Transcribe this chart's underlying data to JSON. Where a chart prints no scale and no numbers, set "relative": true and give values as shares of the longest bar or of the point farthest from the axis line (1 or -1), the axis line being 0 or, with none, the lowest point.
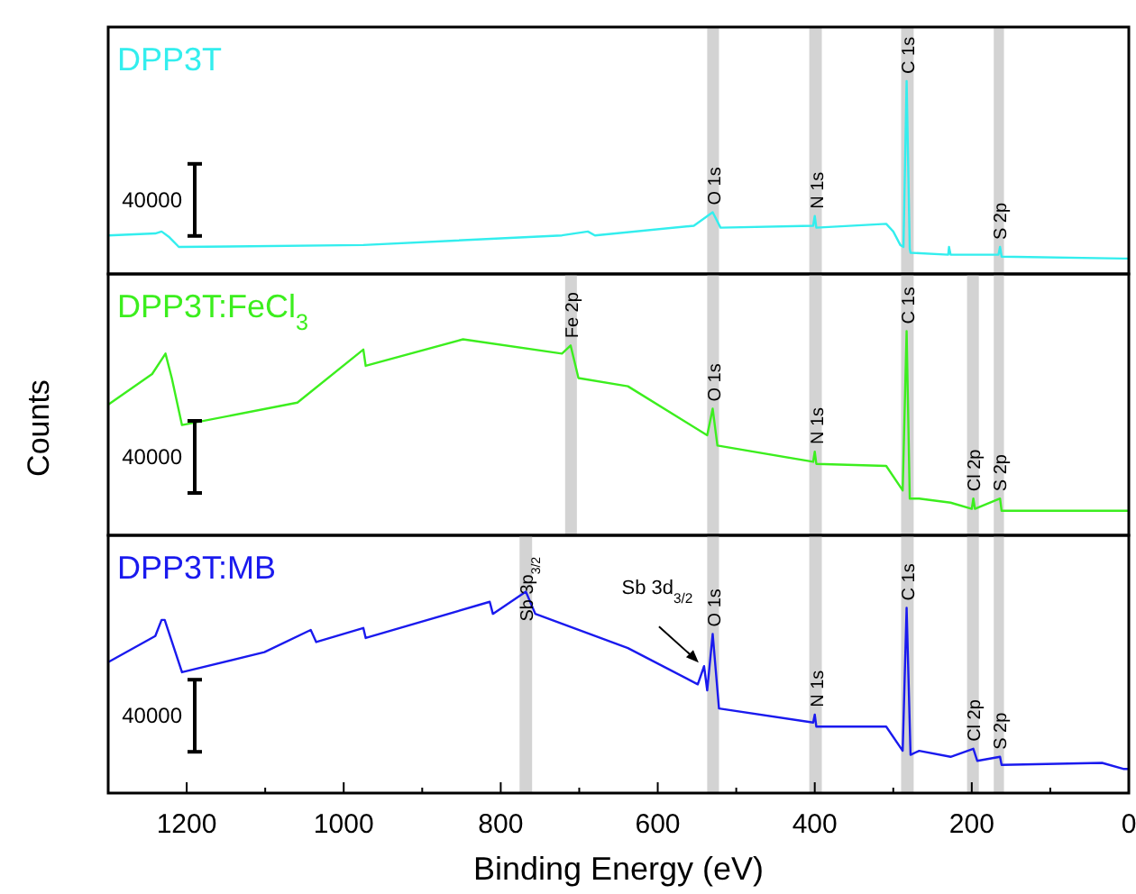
{
  "chart_data": [
    {
      "type": "line",
      "relative": true,
      "xlim": [
        1300,
        0
      ],
      "tick_labels": false,
      "legend": "top left",
      "series": [
        {
          "name": "DPP3T",
          "color": "#33eeee",
          "x": [
            1300,
            1240,
            1232,
            1222,
            1210,
            975,
            722,
            689,
            680,
            554,
            530,
            520,
            402,
            400,
            398,
            309,
            300,
            291,
            287,
            283,
            279,
            278,
            230,
            229,
            227,
            166,
            164,
            162,
            7,
            0
          ],
          "values": [
            0.2,
            0.21,
            0.22,
            0.19,
            0.14,
            0.15,
            0.2,
            0.22,
            0.2,
            0.25,
            0.32,
            0.24,
            0.25,
            0.3,
            0.24,
            0.26,
            0.22,
            0.15,
            0.14,
            1.0,
            0.13,
            0.11,
            0.1,
            0.14,
            0.1,
            0.1,
            0.14,
            0.09,
            0.08,
            0.08
          ]
        }
      ],
      "bands": [
        {
          "axis": "x",
          "from": 537,
          "to": 522,
          "label": "O 1s",
          "color": "#d3d3d3"
        },
        {
          "axis": "x",
          "from": 407,
          "to": 391,
          "label": "N 1s",
          "color": "#d3d3d3"
        },
        {
          "axis": "x",
          "from": 290,
          "to": 274,
          "label": "C 1s",
          "color": "#d3d3d3"
        },
        {
          "axis": "x",
          "from": 172,
          "to": 159,
          "label": "S 2p",
          "color": "#d3d3d3"
        }
      ],
      "annotations": [
        "40000"
      ]
    },
    {
      "type": "line",
      "relative": true,
      "xlim": [
        1300,
        0
      ],
      "tick_labels": false,
      "legend": "top left",
      "ylabel": "Counts",
      "series": [
        {
          "name": "DPP3T:FeCl$_{3}$",
          "color": "#3cee1e",
          "x": [
            1300,
            1244,
            1227,
            1219,
            1206,
            1059,
            975,
            972,
            848,
            722,
            711,
            701,
            638,
            537,
            530,
            524,
            402,
            400,
            398,
            309,
            288,
            283,
            279,
            267,
            227,
            200,
            198,
            196,
            164,
            162,
            0
          ],
          "values": [
            0.64,
            0.79,
            0.89,
            0.77,
            0.54,
            0.65,
            0.91,
            0.83,
            0.96,
            0.89,
            0.93,
            0.77,
            0.73,
            0.49,
            0.62,
            0.44,
            0.36,
            0.41,
            0.35,
            0.34,
            0.22,
            1.0,
            0.18,
            0.18,
            0.16,
            0.13,
            0.18,
            0.13,
            0.18,
            0.12,
            0.12
          ]
        }
      ],
      "bands": [
        {
          "axis": "x",
          "from": 718,
          "to": 703,
          "label": "Fe 2p",
          "color": "#d3d3d3"
        },
        {
          "axis": "x",
          "from": 537,
          "to": 522,
          "label": "O 1s",
          "color": "#d3d3d3"
        },
        {
          "axis": "x",
          "from": 407,
          "to": 391,
          "label": "N 1s",
          "color": "#d3d3d3"
        },
        {
          "axis": "x",
          "from": 290,
          "to": 274,
          "label": "C 1s",
          "color": "#d3d3d3"
        },
        {
          "axis": "x",
          "from": 206,
          "to": 191,
          "label": "Cl 2p",
          "color": "#d3d3d3"
        },
        {
          "axis": "x",
          "from": 172,
          "to": 159,
          "label": "S 2p",
          "color": "#d3d3d3"
        }
      ],
      "annotations": [
        "40000"
      ]
    },
    {
      "type": "line",
      "relative": true,
      "xlim": [
        1300,
        0
      ],
      "tick_labels": "x",
      "legend": "top left",
      "xlabel": "Binding Energy (eV)",
      "xticks": [
        1200,
        {
          "value": 1100,
          "label": null
        },
        1000,
        {
          "value": 900,
          "label": null
        },
        800,
        {
          "value": 700,
          "label": null
        },
        600,
        {
          "value": 500,
          "label": null
        },
        400,
        {
          "value": 300,
          "label": null
        },
        200,
        {
          "value": 100,
          "label": null
        },
        0
      ],
      "series": [
        {
          "name": "DPP3T:MB",
          "color": "#1a1aee",
          "x": [
            1300,
            1240,
            1232,
            1228,
            1206,
            1101,
            1042,
            1035,
            975,
            972,
            814,
            810,
            768,
            756,
            638,
            549,
            541,
            537,
            530,
            522,
            402,
            400,
            398,
            309,
            288,
            283,
            278,
            267,
            227,
            198,
            193,
            164,
            162,
            34,
            7,
            0
          ],
          "values": [
            0.65,
            0.78,
            0.86,
            0.86,
            0.6,
            0.7,
            0.81,
            0.75,
            0.82,
            0.77,
            0.95,
            0.89,
            1.0,
            0.89,
            0.72,
            0.54,
            0.63,
            0.51,
            0.79,
            0.42,
            0.35,
            0.39,
            0.33,
            0.33,
            0.21,
            0.92,
            0.19,
            0.21,
            0.18,
            0.22,
            0.16,
            0.18,
            0.14,
            0.15,
            0.12,
            0.12
          ]
        }
      ],
      "bands": [
        {
          "axis": "x",
          "from": 776,
          "to": 760,
          "label": "Sb 3p$_{3/2}$",
          "color": "#d3d3d3"
        },
        {
          "axis": "x",
          "from": 537,
          "to": 522,
          "label": "O 1s",
          "color": "#d3d3d3"
        },
        {
          "axis": "x",
          "from": 407,
          "to": 391,
          "label": "N 1s",
          "color": "#d3d3d3"
        },
        {
          "axis": "x",
          "from": 290,
          "to": 274,
          "label": "C 1s",
          "color": "#d3d3d3"
        },
        {
          "axis": "x",
          "from": 206,
          "to": 191,
          "label": "Cl 2p",
          "color": "#d3d3d3"
        },
        {
          "axis": "x",
          "from": 172,
          "to": 159,
          "label": "S 2p",
          "color": "#d3d3d3"
        }
      ],
      "annotations": [
        "40000",
        {
          "text": "Sb 3d$_{3/2}$",
          "x": 541,
          "y": 0.63
        }
      ]
    }
  ]
}
